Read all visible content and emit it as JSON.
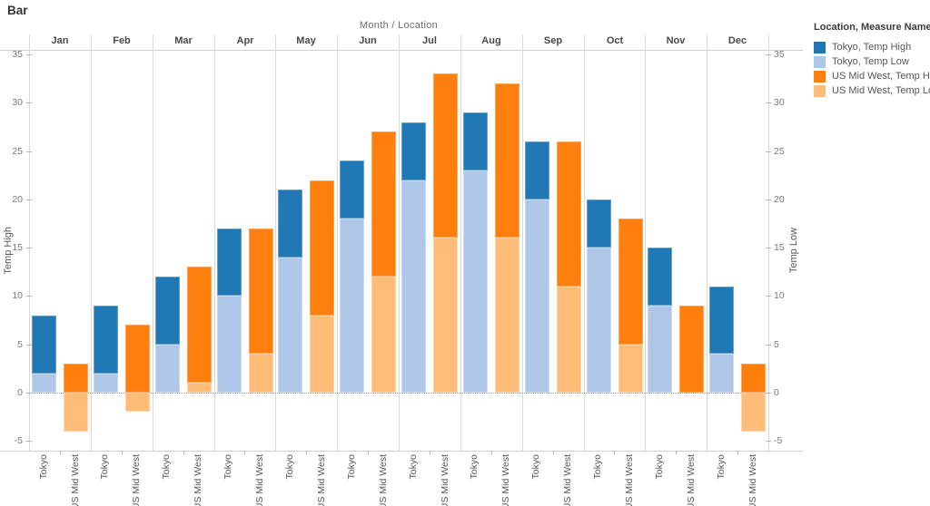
{
  "chart_data": {
    "type": "bar",
    "title": "Bar",
    "pane_header": "Month / Location",
    "legend_title": "Location, Measure Names",
    "categories": [
      "Jan",
      "Feb",
      "Mar",
      "Apr",
      "May",
      "Jun",
      "Jul",
      "Aug",
      "Sep",
      "Oct",
      "Nov",
      "Dec"
    ],
    "sub_categories": [
      "Tokyo",
      "US Mid West"
    ],
    "left_axis": {
      "label": "Temp High",
      "ticks": [
        35,
        30,
        25,
        20,
        15,
        10,
        5,
        0,
        -5
      ]
    },
    "right_axis": {
      "label": "Temp Low",
      "ticks": [
        35,
        30,
        25,
        20,
        15,
        10,
        5,
        0,
        -5
      ]
    },
    "ylim": [
      -6,
      35.5
    ],
    "grid": {
      "horizontal_gridlines": false,
      "zero_line": "dotted",
      "pane_dividers": true
    },
    "legend_position": "right",
    "series": [
      {
        "name": "Tokyo, Temp High",
        "location": "Tokyo",
        "measure": "Temp High",
        "color": "#1F77B4",
        "values": [
          8,
          9,
          12,
          17,
          21,
          24,
          28,
          29,
          26,
          20,
          15,
          11
        ]
      },
      {
        "name": "Tokyo, Temp Low",
        "location": "Tokyo",
        "measure": "Temp Low",
        "color": "#AEC7E8",
        "values": [
          2,
          2,
          5,
          10,
          14,
          18,
          22,
          23,
          20,
          15,
          9,
          4
        ]
      },
      {
        "name": "US Mid West, Temp High",
        "location": "US Mid West",
        "measure": "Temp High",
        "color": "#FF7F0E",
        "values": [
          3,
          7,
          13,
          17,
          22,
          27,
          33,
          32,
          26,
          18,
          9,
          3
        ]
      },
      {
        "name": "US Mid West, Temp Low",
        "location": "US Mid West",
        "measure": "Temp Low",
        "color": "#FFBB78",
        "values": [
          -4,
          -2,
          1,
          4,
          8,
          12,
          16,
          16,
          11,
          5,
          0,
          -4
        ]
      }
    ]
  }
}
